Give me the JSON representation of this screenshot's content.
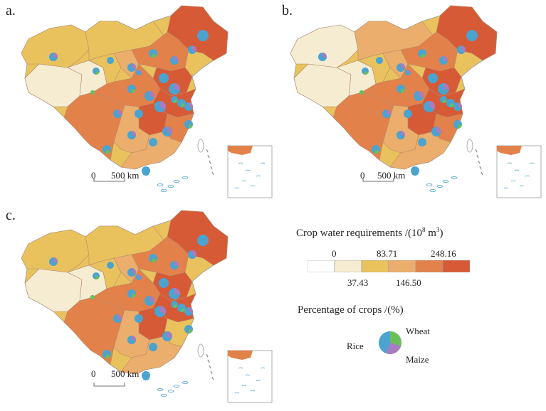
{
  "panels": [
    {
      "label": "a.",
      "scale_zero": "0",
      "scale_text": "500 km"
    },
    {
      "label": "b.",
      "scale_zero": "0",
      "scale_text": "500 km"
    },
    {
      "label": "c.",
      "scale_zero": "0",
      "scale_text": "500 km"
    }
  ],
  "legend": {
    "cwr_title": "Crop water requirements /(10",
    "cwr_sup": "8",
    "cwr_unit": " m",
    "cwr_sup2": "3",
    "cwr_close": ")",
    "classes": [
      {
        "color": "#ffffff"
      },
      {
        "color": "#f5ecd2"
      },
      {
        "color": "#e9c25e"
      },
      {
        "color": "#ebae6c"
      },
      {
        "color": "#e3814b"
      },
      {
        "color": "#d75a36"
      }
    ],
    "ticks_top": [
      "0",
      "83.71",
      "248.16"
    ],
    "ticks_bottom": [
      "37.43",
      "146.50"
    ],
    "pct_title": "Percentage of crops /(%)",
    "pie_labels": {
      "rice": "Rice",
      "wheat": "Wheat",
      "maize": "Maize"
    },
    "crop_colors": {
      "rice": "#4ba3d0",
      "wheat": "#6abf59",
      "maize": "#a87cc0"
    }
  },
  "map_colors": {
    "land_light": "#f5ecd2",
    "land_yellow": "#e9c25e",
    "land_orange": "#ebae6c",
    "land_dark": "#e3814b",
    "land_red": "#d75a36",
    "border": "#9a9a9a",
    "water": "#4ba3d0"
  }
}
